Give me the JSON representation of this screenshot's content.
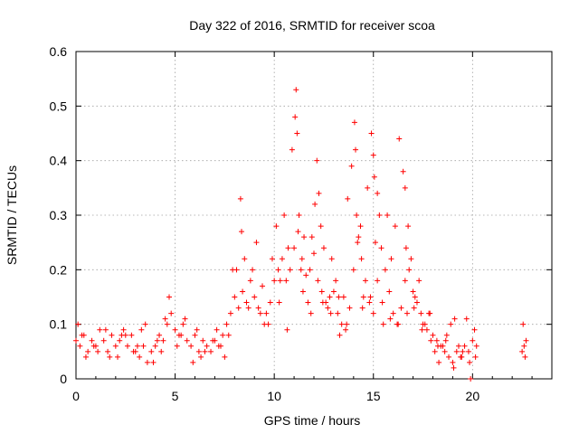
{
  "chart_data": {
    "type": "scatter",
    "title": "Day 322 of 2016, SRMTID for receiver scoa",
    "xlabel": "GPS time / hours",
    "ylabel": "SRMTID / TECUs",
    "xlim": [
      0,
      24
    ],
    "ylim": [
      0,
      0.6
    ],
    "x_ticks": [
      0,
      5,
      10,
      15,
      20
    ],
    "y_ticks": [
      0,
      0.1,
      0.2,
      0.3,
      0.4,
      0.5,
      0.6
    ],
    "x_tick_labels": [
      "0",
      "5",
      "10",
      "15",
      "20"
    ],
    "y_tick_labels": [
      "0",
      "0.1",
      "0.2",
      "0.3",
      "0.4",
      "0.5",
      "0.6"
    ],
    "grid": true,
    "marker": "plus",
    "color": "#ff0000",
    "series": [
      {
        "name": "SRMTID",
        "x": [
          0.0,
          0.2,
          0.4,
          0.6,
          0.8,
          1.0,
          1.2,
          1.4,
          1.6,
          1.8,
          2.0,
          2.2,
          2.4,
          2.6,
          2.8,
          3.0,
          3.2,
          3.4,
          3.6,
          3.8,
          4.0,
          4.2,
          4.4,
          4.6,
          4.8,
          5.0,
          5.2,
          5.4,
          5.6,
          5.8,
          6.0,
          6.2,
          6.4,
          6.6,
          6.8,
          7.0,
          7.2,
          7.4,
          7.6,
          7.8,
          8.0,
          8.2,
          8.4,
          8.6,
          8.8,
          9.0,
          9.2,
          9.4,
          9.6,
          9.8,
          10.0,
          10.2,
          10.4,
          10.6,
          10.8,
          11.0,
          11.2,
          11.4,
          11.6,
          11.8,
          12.0,
          12.2,
          12.4,
          12.6,
          12.8,
          13.0,
          13.2,
          13.4,
          13.6,
          13.8,
          14.0,
          14.2,
          14.4,
          14.6,
          14.8,
          15.0,
          15.2,
          15.4,
          15.6,
          15.8,
          16.0,
          16.2,
          16.4,
          16.6,
          16.8,
          17.0,
          17.2,
          17.4,
          17.6,
          17.8,
          18.0,
          18.2,
          18.4,
          18.6,
          18.8,
          19.0,
          19.2,
          19.4,
          19.6,
          19.8,
          20.0,
          20.2,
          22.5,
          22.6,
          22.7,
          0.1,
          0.5,
          1.1,
          1.5,
          2.1,
          2.5,
          3.1,
          3.5,
          4.1,
          4.5,
          4.7,
          5.1,
          5.5,
          6.1,
          6.5,
          7.1,
          7.5,
          7.9,
          8.3,
          8.35,
          8.5,
          8.9,
          9.1,
          9.5,
          9.9,
          10.1,
          10.3,
          10.5,
          10.7,
          10.9,
          11.05,
          11.1,
          11.15,
          11.25,
          11.35,
          11.5,
          11.7,
          11.9,
          12.05,
          12.15,
          12.25,
          12.35,
          12.5,
          12.7,
          12.9,
          13.1,
          13.3,
          13.5,
          13.7,
          13.9,
          14.05,
          14.1,
          14.15,
          14.25,
          14.35,
          14.5,
          14.7,
          14.9,
          15.0,
          15.05,
          15.1,
          15.2,
          15.3,
          15.5,
          15.7,
          15.9,
          16.1,
          16.3,
          16.5,
          16.6,
          16.65,
          16.7,
          16.75,
          16.9,
          17.1,
          17.3,
          17.5,
          17.7,
          17.9,
          18.1,
          18.3,
          18.5,
          18.7,
          18.9,
          19.1,
          19.3,
          19.5,
          19.7,
          19.9,
          20.1,
          22.55,
          22.65,
          0.3,
          0.9,
          1.7,
          2.3,
          2.9,
          3.3,
          3.9,
          4.3,
          5.3,
          5.9,
          6.3,
          6.9,
          7.3,
          7.7,
          8.1,
          8.7,
          9.3,
          9.7,
          10.25,
          10.65,
          11.45,
          11.85,
          12.45,
          12.85,
          13.25,
          13.65,
          14.45,
          14.85,
          15.45,
          15.85,
          16.25,
          17.05,
          17.45,
          17.85,
          18.25,
          18.65,
          19.05,
          19.45,
          19.85,
          20.15
        ],
        "y": [
          0.07,
          0.06,
          0.08,
          0.05,
          0.07,
          0.06,
          0.09,
          0.07,
          0.05,
          0.08,
          0.06,
          0.07,
          0.09,
          0.06,
          0.08,
          0.05,
          0.04,
          0.06,
          0.03,
          0.05,
          0.06,
          0.08,
          0.07,
          0.1,
          0.12,
          0.09,
          0.08,
          0.1,
          0.07,
          0.06,
          0.08,
          0.05,
          0.07,
          0.06,
          0.05,
          0.07,
          0.06,
          0.08,
          0.1,
          0.12,
          0.15,
          0.13,
          0.16,
          0.14,
          0.18,
          0.15,
          0.13,
          0.17,
          0.12,
          0.14,
          0.18,
          0.2,
          0.22,
          0.18,
          0.2,
          0.24,
          0.27,
          0.22,
          0.19,
          0.2,
          0.23,
          0.18,
          0.16,
          0.14,
          0.15,
          0.16,
          0.12,
          0.1,
          0.09,
          0.13,
          0.2,
          0.25,
          0.22,
          0.18,
          0.14,
          0.12,
          0.18,
          0.24,
          0.2,
          0.16,
          0.12,
          0.1,
          0.13,
          0.18,
          0.2,
          0.16,
          0.14,
          0.12,
          0.1,
          0.12,
          0.08,
          0.07,
          0.06,
          0.05,
          0.04,
          0.03,
          0.05,
          0.04,
          0.06,
          0.05,
          0.07,
          0.06,
          0.05,
          0.06,
          0.07,
          0.1,
          0.04,
          0.05,
          0.09,
          0.04,
          0.08,
          0.06,
          0.1,
          0.07,
          0.11,
          0.15,
          0.06,
          0.11,
          0.09,
          0.05,
          0.09,
          0.04,
          0.2,
          0.33,
          0.27,
          0.22,
          0.2,
          0.25,
          0.1,
          0.22,
          0.28,
          0.18,
          0.3,
          0.24,
          0.42,
          0.48,
          0.53,
          0.45,
          0.3,
          0.2,
          0.26,
          0.14,
          0.26,
          0.32,
          0.4,
          0.34,
          0.28,
          0.24,
          0.13,
          0.22,
          0.18,
          0.08,
          0.15,
          0.33,
          0.39,
          0.47,
          0.42,
          0.3,
          0.26,
          0.28,
          0.15,
          0.35,
          0.45,
          0.41,
          0.37,
          0.25,
          0.34,
          0.3,
          0.1,
          0.3,
          0.22,
          0.28,
          0.44,
          0.38,
          0.35,
          0.24,
          0.12,
          0.28,
          0.22,
          0.15,
          0.18,
          0.1,
          0.09,
          0.07,
          0.05,
          0.03,
          0.06,
          0.08,
          0.1,
          0.11,
          0.06,
          0.05,
          0.11,
          0.0,
          0.09,
          0.1,
          0.04,
          0.08,
          0.06,
          0.04,
          0.08,
          0.05,
          0.09,
          0.03,
          0.05,
          0.08,
          0.03,
          0.04,
          0.07,
          0.06,
          0.08,
          0.2,
          0.13,
          0.12,
          0.1,
          0.14,
          0.09,
          0.16,
          0.12,
          0.14,
          0.12,
          0.15,
          0.1,
          0.13,
          0.15,
          0.14,
          0.11,
          0.1,
          0.13,
          0.09,
          0.12,
          0.06,
          0.07,
          0.02,
          0.04,
          0.03,
          0.04
        ]
      }
    ]
  }
}
